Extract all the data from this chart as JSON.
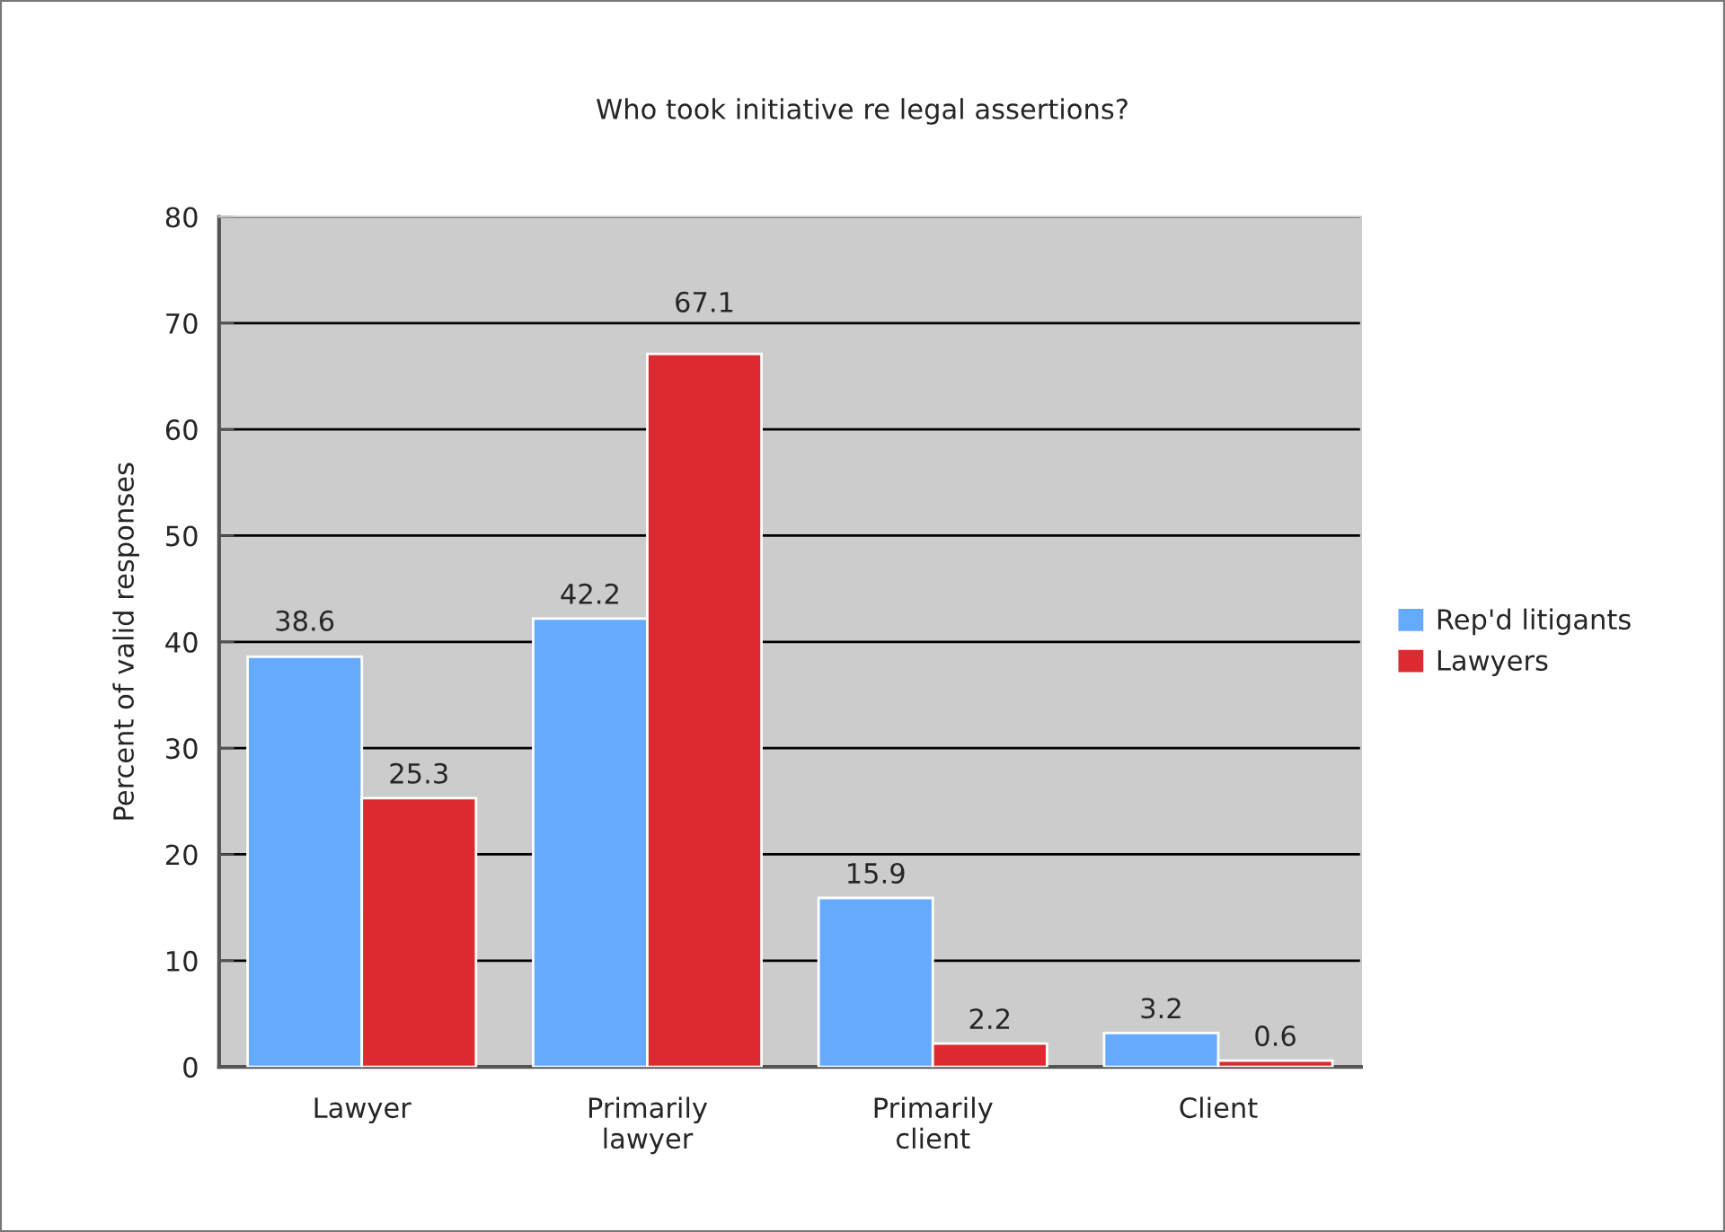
{
  "chart_data": {
    "type": "bar",
    "title": "Who took initiative re legal assertions?",
    "ylabel": "Percent of valid responses",
    "categories": [
      "Lawyer",
      "Primarily\nlawyer",
      "Primarily\nclient",
      "Client"
    ],
    "series": [
      {
        "name": "Rep'd litigants",
        "color": "#66aaff",
        "values": [
          38.6,
          42.2,
          15.9,
          3.2
        ]
      },
      {
        "name": "Lawyers",
        "color": "#dd2a30",
        "values": [
          25.3,
          67.1,
          2.2,
          0.6
        ]
      }
    ],
    "ylim": [
      0,
      80
    ],
    "yticks": [
      0,
      10,
      20,
      30,
      40,
      50,
      60,
      70,
      80
    ],
    "grid": "y",
    "legend": "right",
    "data_labels": true
  }
}
